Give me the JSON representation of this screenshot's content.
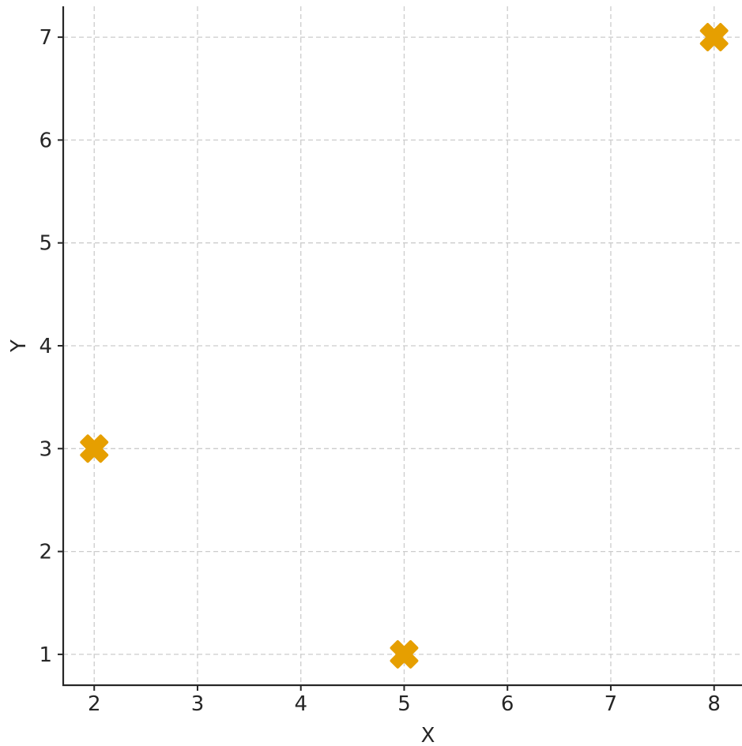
{
  "chart_data": {
    "type": "scatter",
    "title": "",
    "xlabel": "X",
    "ylabel": "Y",
    "xlim": [
      1.7,
      8.27
    ],
    "ylim": [
      0.7,
      7.3
    ],
    "xticks": [
      2,
      3,
      4,
      5,
      6,
      7,
      8
    ],
    "yticks": [
      1,
      2,
      3,
      4,
      5,
      6,
      7
    ],
    "grid": true,
    "legend": "none",
    "series": [
      {
        "marker": "x-filled",
        "color": "#E69F00",
        "points": [
          {
            "x": 2,
            "y": 3
          },
          {
            "x": 5,
            "y": 1
          },
          {
            "x": 8,
            "y": 7
          }
        ]
      }
    ]
  }
}
